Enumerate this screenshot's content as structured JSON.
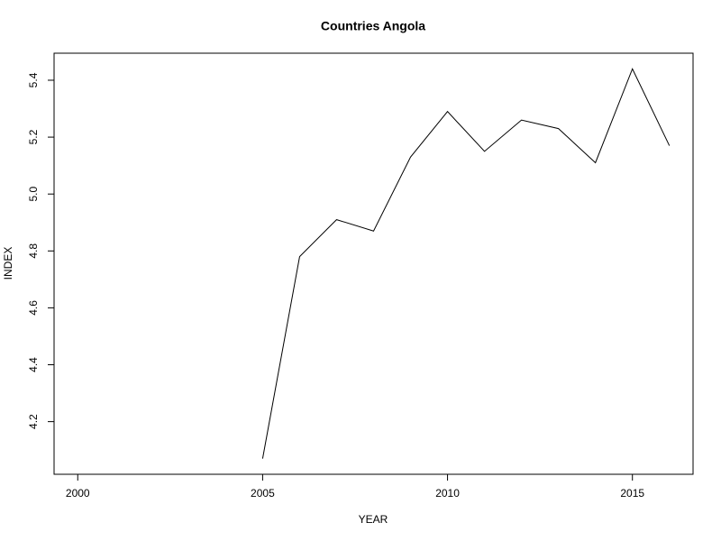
{
  "chart_data": {
    "type": "line",
    "title": "Countries Angola",
    "x_label": "YEAR",
    "y_label": "INDEX",
    "x": [
      2000,
      2001,
      2002,
      2003,
      2004,
      2005,
      2006,
      2007,
      2008,
      2009,
      2010,
      2011,
      2012,
      2013,
      2014,
      2015,
      2016
    ],
    "series": [
      {
        "color": "#000000",
        "values": [
          null,
          null,
          null,
          null,
          null,
          4.07,
          4.78,
          4.91,
          4.87,
          5.13,
          5.29,
          5.15,
          5.26,
          5.23,
          5.11,
          5.44,
          5.17
        ]
      }
    ],
    "xlim": [
      1999.36,
      2016.64
    ],
    "xticks": [
      2000,
      2005,
      2010,
      2015
    ],
    "ylim": [
      4.015,
      5.495
    ],
    "yticks": [
      4.2,
      4.4,
      4.6,
      4.8,
      {
        "value": 5,
        "label": "5.0"
      },
      5.2,
      5.4
    ]
  }
}
